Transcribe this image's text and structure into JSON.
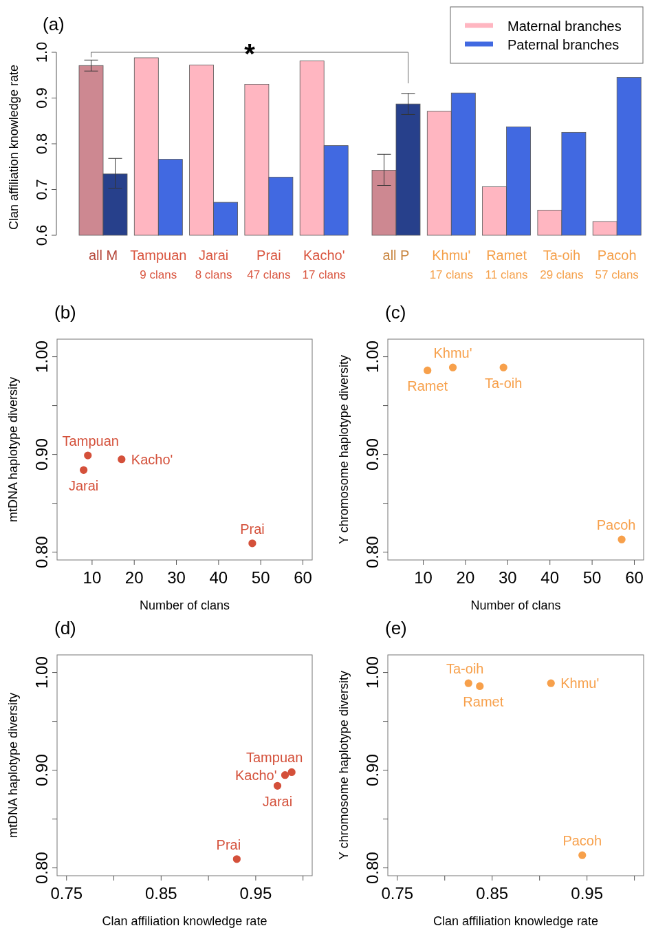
{
  "chart_data": [
    {
      "type": "bar",
      "title": "(a)",
      "ylabel": "Clan affiliation knowledge rate",
      "categories": [
        "all M",
        "Tampuan\n9 clans",
        "Jarai\n8 clans",
        "Prai\n47 clans",
        "Kacho'\n17 clans",
        "all P",
        "Khmu'\n17 clans",
        "Ramet\n11 clans",
        "Ta-oih\n29 clans",
        "Pacoh\n57 clans"
      ],
      "series": [
        {
          "name": "Maternal branches",
          "color": "#ffb6c1",
          "colors": [
            "#cd8891",
            "#ffb6c1",
            "#ffb6c1",
            "#ffb6c1",
            "#ffb6c1",
            "#cd8891",
            "#ffb6c1",
            "#ffb6c1",
            "#ffb6c1",
            "#ffb6c1"
          ],
          "values": [
            0.971,
            0.988,
            0.972,
            0.93,
            0.981,
            0.742,
            0.871,
            0.706,
            0.655,
            0.63
          ],
          "errors": [
            [
              0.959,
              0.983
            ],
            null,
            null,
            null,
            null,
            [
              0.709,
              0.777
            ],
            null,
            null,
            null,
            null
          ]
        },
        {
          "name": "Paternal branches",
          "color": "#4169e1",
          "colors": [
            "#27408b",
            "#4169e1",
            "#4169e1",
            "#4169e1",
            "#4169e1",
            "#27408b",
            "#4169e1",
            "#4169e1",
            "#4169e1",
            "#4169e1"
          ],
          "values": [
            0.734,
            0.766,
            0.672,
            0.727,
            0.796,
            0.887,
            0.911,
            0.837,
            0.825,
            0.945
          ],
          "errors": [
            [
              0.703,
              0.768
            ],
            null,
            null,
            null,
            null,
            [
              0.864,
              0.91
            ],
            null,
            null,
            null,
            null
          ]
        }
      ],
      "ylim": [
        0.6,
        1.0
      ],
      "yticks": [
        0.6,
        0.7,
        0.8,
        0.9,
        {
          "value": 1,
          "label": "1.0"
        }
      ],
      "legend": "top right",
      "annotations": [
        "*"
      ]
    },
    {
      "type": "scatter",
      "title": "(b)",
      "xlabel": "Number of clans",
      "ylabel": "mtDNA haplotype diversity",
      "series": [
        {
          "color": "#d4503a",
          "x": [
            9,
            17,
            8,
            48
          ],
          "values": [
            0.899,
            0.895,
            0.884,
            0.809
          ]
        }
      ],
      "marker": "circle",
      "xlim": [
        1.7,
        62.2
      ],
      "xticks": [
        10,
        20,
        30,
        40,
        50,
        60
      ],
      "ylim": [
        0.792,
        1.018
      ],
      "yticks": [
        {
          "value": 0.8,
          "label": "0.80"
        },
        {
          "value": 0.85,
          "label": null
        },
        {
          "value": 0.9,
          "label": "0.90"
        },
        {
          "value": 0.95,
          "label": null
        },
        {
          "value": 1,
          "label": "1.00"
        }
      ],
      "annotations": [
        {
          "text": "Tampuan",
          "x": 9,
          "y": 0.899
        },
        {
          "text": "Kacho'",
          "x": 17,
          "y": 0.895
        },
        {
          "text": "Jarai",
          "x": 8,
          "y": 0.884
        },
        {
          "text": "Prai",
          "x": 48,
          "y": 0.809
        }
      ]
    },
    {
      "type": "scatter",
      "title": "(c)",
      "xlabel": "Number of clans",
      "ylabel": "Y chromosome haplotype diversity",
      "series": [
        {
          "color": "#f7a04b",
          "x": [
            17,
            11,
            29,
            57
          ],
          "values": [
            0.989,
            0.986,
            0.989,
            0.813
          ]
        }
      ],
      "marker": "circle",
      "xlim": [
        1.6,
        62.2
      ],
      "xticks": [
        10,
        20,
        30,
        40,
        50,
        60
      ],
      "ylim": [
        0.792,
        1.018
      ],
      "yticks": [
        {
          "value": 0.8,
          "label": "0.80"
        },
        {
          "value": 0.85,
          "label": null
        },
        {
          "value": 0.9,
          "label": "0.90"
        },
        {
          "value": 0.95,
          "label": null
        },
        {
          "value": 1,
          "label": "1.00"
        }
      ],
      "annotations": [
        {
          "text": "Khmu'",
          "x": 17,
          "y": 0.989
        },
        {
          "text": "Ramet",
          "x": 11,
          "y": 0.986
        },
        {
          "text": "Ta-oih",
          "x": 29,
          "y": 0.989
        },
        {
          "text": "Pacoh",
          "x": 57,
          "y": 0.813
        }
      ]
    },
    {
      "type": "scatter",
      "title": "(d)",
      "xlabel": "Clan affiliation knowledge rate",
      "ylabel": "mtDNA haplotype diversity",
      "series": [
        {
          "color": "#d4503a",
          "x": [
            0.988,
            0.981,
            0.973,
            0.93
          ],
          "values": [
            0.898,
            0.895,
            0.884,
            0.809
          ]
        }
      ],
      "marker": "circle",
      "xlim": [
        0.74,
        1.0097
      ],
      "xticks": [
        0.75,
        {
          "value": 0.8,
          "label": null
        },
        0.85,
        {
          "value": 0.9,
          "label": null
        },
        0.95,
        {
          "value": 1,
          "label": null
        }
      ],
      "ylim": [
        0.792,
        1.018
      ],
      "yticks": [
        {
          "value": 0.8,
          "label": "0.80"
        },
        {
          "value": 0.85,
          "label": null
        },
        {
          "value": 0.9,
          "label": "0.90"
        },
        {
          "value": 0.95,
          "label": null
        },
        {
          "value": 1,
          "label": "1.00"
        }
      ],
      "annotations": [
        {
          "text": "Tampuan",
          "x": 0.988,
          "y": 0.898
        },
        {
          "text": "Kacho'",
          "x": 0.981,
          "y": 0.895
        },
        {
          "text": "Jarai",
          "x": 0.973,
          "y": 0.884
        },
        {
          "text": "Prai",
          "x": 0.93,
          "y": 0.809
        }
      ]
    },
    {
      "type": "scatter",
      "title": "(e)",
      "xlabel": "Clan affiliation knowledge rate",
      "ylabel": "Y chromosome haplotype diversity",
      "series": [
        {
          "color": "#f7a04b",
          "x": [
            0.825,
            0.837,
            0.912,
            0.945
          ],
          "values": [
            0.989,
            0.986,
            0.989,
            0.813
          ]
        }
      ],
      "marker": "circle",
      "xlim": [
        0.74,
        1.0097
      ],
      "xticks": [
        0.75,
        {
          "value": 0.8,
          "label": null
        },
        0.85,
        {
          "value": 0.9,
          "label": null
        },
        0.95,
        {
          "value": 1,
          "label": null
        }
      ],
      "ylim": [
        0.792,
        1.018
      ],
      "yticks": [
        {
          "value": 0.8,
          "label": "0.80"
        },
        {
          "value": 0.85,
          "label": null
        },
        {
          "value": 0.9,
          "label": "0.90"
        },
        {
          "value": 0.95,
          "label": null
        },
        {
          "value": 1,
          "label": "1.00"
        }
      ],
      "annotations": [
        {
          "text": "Ta-oih",
          "x": 0.825,
          "y": 0.989
        },
        {
          "text": "Ramet",
          "x": 0.837,
          "y": 0.986
        },
        {
          "text": "Khmu'",
          "x": 0.912,
          "y": 0.989
        },
        {
          "text": "Pacoh",
          "x": 0.945,
          "y": 0.813
        }
      ]
    }
  ]
}
